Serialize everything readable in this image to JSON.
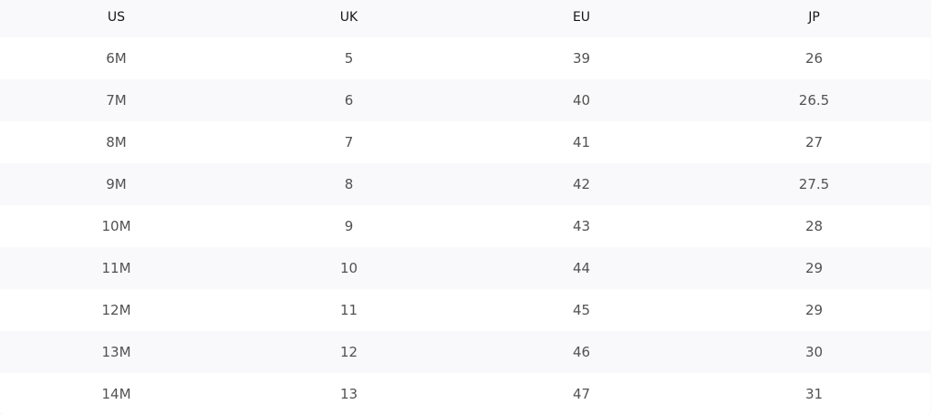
{
  "table": {
    "headers": [
      "US",
      "UK",
      "EU",
      "JP"
    ],
    "rows": [
      [
        "6M",
        "5",
        "39",
        "26"
      ],
      [
        "7M",
        "6",
        "40",
        "26.5"
      ],
      [
        "8M",
        "7",
        "41",
        "27"
      ],
      [
        "9M",
        "8",
        "42",
        "27.5"
      ],
      [
        "10M",
        "9",
        "43",
        "28"
      ],
      [
        "11M",
        "10",
        "44",
        "29"
      ],
      [
        "12M",
        "11",
        "45",
        "29"
      ],
      [
        "13M",
        "12",
        "46",
        "30"
      ],
      [
        "14M",
        "13",
        "47",
        "31"
      ]
    ]
  }
}
